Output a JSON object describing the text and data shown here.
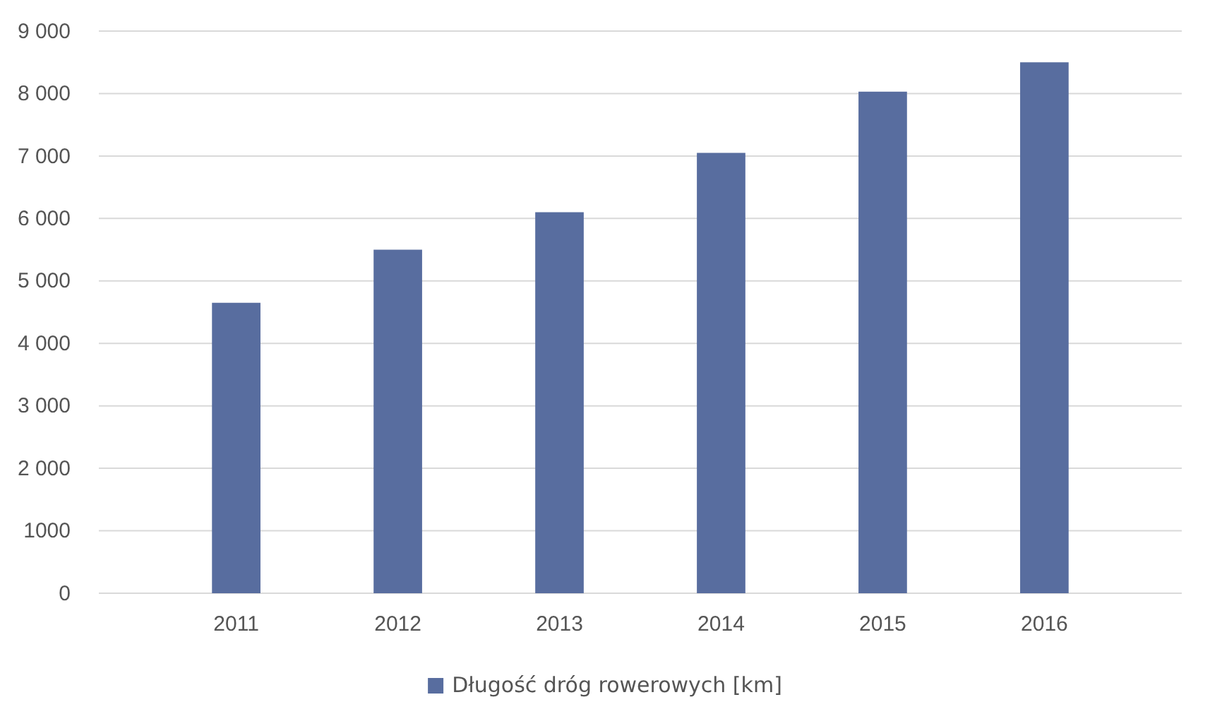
{
  "chart_data": {
    "type": "bar",
    "categories": [
      "2011",
      "2012",
      "2013",
      "2014",
      "2015",
      "2016"
    ],
    "series": [
      {
        "name": "Długość dróg rowerowych [km]",
        "color": "#586d9f",
        "values": [
          4650,
          5500,
          6100,
          7050,
          8030,
          8500
        ]
      }
    ],
    "ylim": [
      0,
      9000
    ],
    "yticks": [
      0,
      {
        "value": 1000,
        "label": "1000"
      },
      {
        "value": 2000,
        "label": "2 000"
      },
      {
        "value": 3000,
        "label": "3 000"
      },
      {
        "value": 4000,
        "label": "4 000"
      },
      {
        "value": 5000,
        "label": "5 000"
      },
      {
        "value": 6000,
        "label": "6 000"
      },
      {
        "value": 7000,
        "label": "7 000"
      },
      {
        "value": 8000,
        "label": "8 000"
      },
      {
        "value": 9000,
        "label": "9 000"
      }
    ],
    "grid": "y",
    "legend": "bottom"
  }
}
